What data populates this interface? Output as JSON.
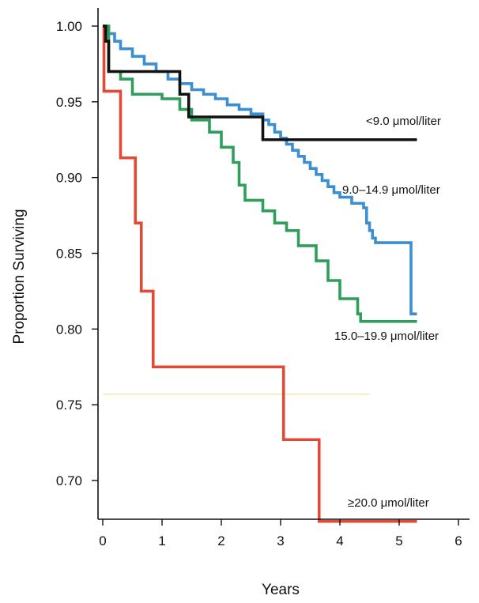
{
  "chart_data": {
    "type": "line",
    "step": true,
    "xlabel": "Years",
    "ylabel": "Proportion Surviving",
    "xlim": [
      0,
      6
    ],
    "ylim": [
      0.65,
      1.0
    ],
    "xticks": [
      "0",
      "1",
      "2",
      "3",
      "4",
      "5",
      "6"
    ],
    "yticks": [
      "0.70",
      "0.75",
      "0.80",
      "0.85",
      "0.90",
      "0.95",
      "1.00"
    ],
    "grid": false,
    "legend": "inline labels at line ends",
    "reference_line": {
      "y": 0.757,
      "x_range": [
        0,
        4.5
      ],
      "color": "#f2dfa0"
    },
    "series": [
      {
        "name": "<9.0 μmol/liter",
        "color": "#111111",
        "points": [
          [
            0,
            1.0
          ],
          [
            0.05,
            0.99
          ],
          [
            0.1,
            0.97
          ],
          [
            1.3,
            0.97
          ],
          [
            1.3,
            0.955
          ],
          [
            1.45,
            0.955
          ],
          [
            1.45,
            0.94
          ],
          [
            2.7,
            0.94
          ],
          [
            2.7,
            0.925
          ],
          [
            5.3,
            0.925
          ]
        ]
      },
      {
        "name": "9.0–14.9 μmol/liter",
        "color": "#3b8fd0",
        "points": [
          [
            0,
            1.0
          ],
          [
            0.1,
            0.995
          ],
          [
            0.2,
            0.99
          ],
          [
            0.3,
            0.985
          ],
          [
            0.5,
            0.98
          ],
          [
            0.7,
            0.975
          ],
          [
            0.9,
            0.97
          ],
          [
            1.1,
            0.965
          ],
          [
            1.3,
            0.962
          ],
          [
            1.5,
            0.958
          ],
          [
            1.7,
            0.955
          ],
          [
            1.9,
            0.952
          ],
          [
            2.1,
            0.948
          ],
          [
            2.3,
            0.945
          ],
          [
            2.5,
            0.942
          ],
          [
            2.7,
            0.938
          ],
          [
            2.8,
            0.935
          ],
          [
            2.9,
            0.93
          ],
          [
            3.0,
            0.926
          ],
          [
            3.1,
            0.922
          ],
          [
            3.2,
            0.918
          ],
          [
            3.3,
            0.914
          ],
          [
            3.4,
            0.91
          ],
          [
            3.5,
            0.906
          ],
          [
            3.6,
            0.902
          ],
          [
            3.7,
            0.898
          ],
          [
            3.8,
            0.894
          ],
          [
            3.9,
            0.89
          ],
          [
            4.0,
            0.887
          ],
          [
            4.2,
            0.883
          ],
          [
            4.4,
            0.88
          ],
          [
            4.45,
            0.87
          ],
          [
            4.5,
            0.865
          ],
          [
            4.55,
            0.86
          ],
          [
            4.6,
            0.857
          ],
          [
            5.2,
            0.857
          ],
          [
            5.2,
            0.81
          ],
          [
            5.3,
            0.81
          ]
        ]
      },
      {
        "name": "15.0–19.9 μmol/liter",
        "color": "#2e9e5b",
        "points": [
          [
            0,
            1.0
          ],
          [
            0.1,
            0.97
          ],
          [
            0.3,
            0.965
          ],
          [
            0.5,
            0.955
          ],
          [
            1.0,
            0.952
          ],
          [
            1.3,
            0.945
          ],
          [
            1.5,
            0.938
          ],
          [
            1.8,
            0.93
          ],
          [
            2.0,
            0.92
          ],
          [
            2.2,
            0.91
          ],
          [
            2.3,
            0.895
          ],
          [
            2.4,
            0.885
          ],
          [
            2.7,
            0.878
          ],
          [
            2.9,
            0.87
          ],
          [
            3.1,
            0.865
          ],
          [
            3.3,
            0.855
          ],
          [
            3.6,
            0.845
          ],
          [
            3.8,
            0.832
          ],
          [
            4.0,
            0.82
          ],
          [
            4.3,
            0.81
          ],
          [
            4.35,
            0.805
          ],
          [
            5.3,
            0.805
          ]
        ]
      },
      {
        "name": "≥20.0 μmol/liter",
        "color": "#e04a36",
        "points": [
          [
            0,
            1.0
          ],
          [
            0.02,
            0.957
          ],
          [
            0.3,
            0.957
          ],
          [
            0.3,
            0.913
          ],
          [
            0.55,
            0.913
          ],
          [
            0.55,
            0.87
          ],
          [
            0.65,
            0.87
          ],
          [
            0.65,
            0.825
          ],
          [
            0.85,
            0.825
          ],
          [
            0.85,
            0.775
          ],
          [
            3.05,
            0.775
          ],
          [
            3.05,
            0.727
          ],
          [
            3.65,
            0.727
          ],
          [
            3.65,
            0.673
          ],
          [
            5.3,
            0.673
          ]
        ]
      }
    ]
  }
}
